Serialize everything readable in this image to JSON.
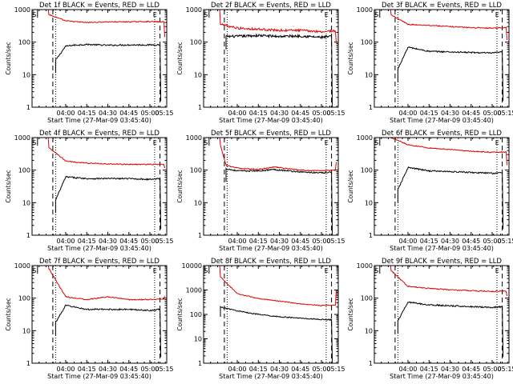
{
  "window": {
    "width": 640,
    "height": 480
  },
  "colors": {
    "events": "#000000",
    "lld": "#dd0000",
    "axes": "#000000",
    "background": "#ffffff"
  },
  "chart_data": [
    {
      "type": "line",
      "title": "Det 1f BLACK = Events, RED = LLD",
      "xlabel": "Start Time (27-Mar-09 03:45:40)",
      "ylabel": "Counts/sec",
      "ylog": true,
      "ylim": [
        1,
        1000
      ],
      "xlim_minutes": [
        -12,
        36
      ],
      "yticks": [
        1,
        10,
        100,
        1000
      ],
      "ytick_labels": [
        "1",
        "10",
        "100",
        "1000"
      ],
      "xticks": [
        0,
        7.5,
        15,
        22.5,
        30,
        37.5
      ],
      "xtick_labels": [
        "04:00",
        "04:15",
        "04:30",
        "04:45",
        "05:00",
        "05:15"
      ],
      "markers": {
        "S": -11.2,
        "E": 31.8
      },
      "dashed_lines": [
        -4.6,
        33.6
      ],
      "dotted_lines": [
        -3.6,
        31.7
      ],
      "series": [
        {
          "style": "events",
          "start": -3.6,
          "end": 33.6,
          "tail": -0.8,
          "x": [
            -3.6,
            0,
            2.5,
            7.5,
            15,
            22.5,
            30,
            33.6
          ],
          "y": [
            28,
            75,
            80,
            85,
            80,
            82,
            82,
            83
          ]
        },
        {
          "style": "lld",
          "start": -6,
          "end": 35,
          "tail": 1.3,
          "x": [
            -6,
            0,
            7.5,
            15,
            22.5,
            30,
            33.6
          ],
          "y": [
            700,
            450,
            400,
            420,
            420,
            430,
            420
          ]
        }
      ]
    },
    {
      "type": "line",
      "title": "Det 2f BLACK = Events, RED = LLD",
      "xlabel": "Start Time (27-Mar-09 03:45:40)",
      "ylabel": "Counts/sec",
      "ylog": true,
      "ylim": [
        1,
        1000
      ],
      "xlim_minutes": [
        -12,
        36
      ],
      "yticks": [
        1,
        10,
        100,
        1000
      ],
      "ytick_labels": [
        "1",
        "10",
        "100",
        "1000"
      ],
      "xticks": [
        0,
        7.5,
        15,
        22.5,
        30,
        37.5
      ],
      "xtick_labels": [
        "04:00",
        "04:15",
        "04:30",
        "04:45",
        "05:00",
        "05:15"
      ],
      "markers": {
        "S": -11.2,
        "E": 31.8
      },
      "dashed_lines": [
        -4.6,
        33.6
      ],
      "dotted_lines": [
        -3.6,
        31.7
      ],
      "series": [
        {
          "style": "events",
          "start": -4.0,
          "end": 33.6,
          "tail": -1.0,
          "x": [
            -4,
            0,
            7.5,
            15,
            22.5,
            30,
            33.6
          ],
          "y": [
            150,
            150,
            160,
            150,
            155,
            140,
            150
          ]
        },
        {
          "style": "lld",
          "start": -6,
          "end": 35,
          "tail": 1.1,
          "x": [
            -6,
            0,
            7.5,
            15,
            22.5,
            30,
            33.6
          ],
          "y": [
            350,
            270,
            250,
            230,
            230,
            210,
            220
          ]
        }
      ]
    },
    {
      "type": "line",
      "title": "Det 3f BLACK = Events, RED = LLD",
      "xlabel": "Start Time (27-Mar-09 03:45:40)",
      "ylabel": "Counts/sec",
      "ylog": true,
      "ylim": [
        1,
        1000
      ],
      "xlim_minutes": [
        -12,
        36
      ],
      "yticks": [
        1,
        10,
        100,
        1000
      ],
      "ytick_labels": [
        "1",
        "10",
        "100",
        "1000"
      ],
      "xticks": [
        0,
        7.5,
        15,
        22.5,
        30,
        37.5
      ],
      "xtick_labels": [
        "04:00",
        "04:15",
        "04:30",
        "04:45",
        "05:00",
        "05:15"
      ],
      "markers": {
        "S": -11.2,
        "E": 31.8
      },
      "dashed_lines": [
        -4.6,
        33.6
      ],
      "dotted_lines": [
        -3.6,
        31.7
      ],
      "series": [
        {
          "style": "events",
          "start": -3.6,
          "end": 33.6,
          "tail": -0.8,
          "x": [
            -3.6,
            0,
            7.5,
            15,
            22.5,
            30,
            33.6
          ],
          "y": [
            15,
            70,
            52,
            50,
            48,
            46,
            50
          ]
        },
        {
          "style": "lld",
          "start": -6,
          "end": 35,
          "tail": 1.2,
          "x": [
            -6,
            0,
            7.5,
            15,
            22.5,
            30,
            33.6
          ],
          "y": [
            700,
            350,
            330,
            300,
            280,
            270,
            280
          ]
        }
      ]
    },
    {
      "type": "line",
      "title": "Det 4f BLACK = Events, RED = LLD",
      "xlabel": "Start Time (27-Mar-09 03:45:40)",
      "ylabel": "Counts/sec",
      "ylog": true,
      "ylim": [
        1,
        1000
      ],
      "xlim_minutes": [
        -12,
        36
      ],
      "yticks": [
        1,
        10,
        100,
        1000
      ],
      "ytick_labels": [
        "1",
        "10",
        "100",
        "1000"
      ],
      "xticks": [
        0,
        7.5,
        15,
        22.5,
        30,
        37.5
      ],
      "xtick_labels": [
        "04:00",
        "04:15",
        "04:30",
        "04:45",
        "05:00",
        "05:15"
      ],
      "markers": {
        "S": -11.2,
        "E": 31.8
      },
      "dashed_lines": [
        -4.6,
        33.6
      ],
      "dotted_lines": [
        -3.6,
        31.7
      ],
      "series": [
        {
          "style": "events",
          "start": -3.6,
          "end": 33.6,
          "tail": -0.8,
          "x": [
            -3.6,
            0,
            7.5,
            15,
            22.5,
            30,
            33.6
          ],
          "y": [
            12,
            62,
            55,
            55,
            55,
            52,
            55
          ]
        },
        {
          "style": "lld",
          "start": -6,
          "end": 35,
          "tail": 1.2,
          "x": [
            -6,
            0,
            7.5,
            15,
            22.5,
            30,
            33.6
          ],
          "y": [
            500,
            190,
            165,
            155,
            150,
            150,
            150
          ]
        }
      ]
    },
    {
      "type": "line",
      "title": "Det 5f BLACK = Events, RED = LLD",
      "xlabel": "Start Time (27-Mar-09 03:45:40)",
      "ylabel": "Counts/sec",
      "ylog": true,
      "ylim": [
        1,
        1000
      ],
      "xlim_minutes": [
        -12,
        36
      ],
      "yticks": [
        1,
        10,
        100,
        1000
      ],
      "ytick_labels": [
        "1",
        "10",
        "100",
        "1000"
      ],
      "xticks": [
        0,
        7.5,
        15,
        22.5,
        30,
        37.5
      ],
      "xtick_labels": [
        "04:00",
        "04:15",
        "04:30",
        "04:45",
        "05:00",
        "05:15"
      ],
      "markers": {
        "S": -11.2,
        "E": 31.8
      },
      "dashed_lines": [
        -4.6,
        33.6
      ],
      "dotted_lines": [
        -3.6,
        31.7
      ],
      "series": [
        {
          "style": "events",
          "start": -4.0,
          "end": 33.6,
          "tail": -1.0,
          "x": [
            -4,
            0,
            7.5,
            13,
            22.5,
            30,
            33.6
          ],
          "y": [
            110,
            95,
            95,
            105,
            88,
            82,
            85
          ]
        },
        {
          "style": "lld",
          "start": -6,
          "end": 35,
          "tail": 1.4,
          "x": [
            -6,
            -4,
            0,
            7.5,
            13,
            22.5,
            30,
            33.6
          ],
          "y": [
            600,
            140,
            115,
            105,
            125,
            100,
            95,
            100
          ]
        }
      ]
    },
    {
      "type": "line",
      "title": "Det 6f BLACK = Events, RED = LLD",
      "xlabel": "Start Time (27-Mar-09 03:45:40)",
      "ylabel": "Counts/sec",
      "ylog": true,
      "ylim": [
        1,
        1000
      ],
      "xlim_minutes": [
        -12,
        36
      ],
      "yticks": [
        1,
        10,
        100,
        1000
      ],
      "ytick_labels": [
        "1",
        "10",
        "100",
        "1000"
      ],
      "xticks": [
        0,
        7.5,
        15,
        22.5,
        30,
        37.5
      ],
      "xtick_labels": [
        "04:00",
        "04:15",
        "04:30",
        "04:45",
        "05:00",
        "05:15"
      ],
      "markers": {
        "S": -11.2,
        "E": 31.8
      },
      "dashed_lines": [
        -4.6,
        33.6
      ],
      "dotted_lines": [
        -3.6,
        31.7
      ],
      "series": [
        {
          "style": "events",
          "start": -3.6,
          "end": 33.6,
          "tail": -0.8,
          "x": [
            -3.6,
            0,
            7.5,
            15,
            22.5,
            30,
            33.6
          ],
          "y": [
            25,
            120,
            95,
            90,
            85,
            80,
            82
          ]
        },
        {
          "style": "lld",
          "start": -6,
          "end": 35,
          "tail": 1.3,
          "x": [
            -6,
            0,
            7.5,
            15,
            22.5,
            30,
            33.6
          ],
          "y": [
            1000,
            600,
            480,
            430,
            380,
            350,
            360
          ]
        }
      ]
    },
    {
      "type": "line",
      "title": "Det 7f BLACK = Events, RED = LLD",
      "xlabel": "Start Time (27-Mar-09 03:45:40)",
      "ylabel": "Counts/sec",
      "ylog": true,
      "ylim": [
        1,
        1000
      ],
      "xlim_minutes": [
        -12,
        36
      ],
      "yticks": [
        1,
        10,
        100,
        1000
      ],
      "ytick_labels": [
        "1",
        "10",
        "100",
        "1000"
      ],
      "xticks": [
        0,
        7.5,
        15,
        22.5,
        30,
        37.5
      ],
      "xtick_labels": [
        "04:00",
        "04:15",
        "04:30",
        "04:45",
        "05:00",
        "05:15"
      ],
      "markers": {
        "S": -11.2,
        "E": 31.8
      },
      "dashed_lines": [
        -4.6,
        33.6
      ],
      "dotted_lines": [
        -3.6,
        31.7
      ],
      "series": [
        {
          "style": "events",
          "start": -3.6,
          "end": 33.6,
          "tail": -0.8,
          "x": [
            -3.6,
            0,
            7.5,
            15,
            22.5,
            30,
            33.6
          ],
          "y": [
            18,
            60,
            45,
            45,
            45,
            42,
            45
          ]
        },
        {
          "style": "lld",
          "start": -6,
          "end": 35,
          "tail": 1.2,
          "x": [
            -6,
            0,
            7.5,
            15,
            22.5,
            30,
            33.6
          ],
          "y": [
            800,
            110,
            90,
            110,
            90,
            90,
            95
          ]
        }
      ]
    },
    {
      "type": "line",
      "title": "Det 8f BLACK = Events, RED = LLD",
      "xlabel": "Start Time (27-Mar-09 03:45:40)",
      "ylabel": "Counts/sec",
      "ylog": true,
      "ylim": [
        1,
        10000
      ],
      "xlim_minutes": [
        -12,
        36
      ],
      "yticks": [
        1,
        10,
        100,
        1000,
        10000
      ],
      "ytick_labels": [
        "1",
        "10",
        "100",
        "1000",
        "10000"
      ],
      "xticks": [
        0,
        7.5,
        15,
        22.5,
        30,
        37.5
      ],
      "xtick_labels": [
        "04:00",
        "04:15",
        "04:30",
        "04:45",
        "05:00",
        "05:15"
      ],
      "markers": {
        "S": -11.2,
        "E": 31.8
      },
      "dashed_lines": [
        -4.6,
        33.6
      ],
      "dotted_lines": [
        -3.6,
        31.7
      ],
      "series": [
        {
          "style": "events",
          "start": -6,
          "end": 33.6,
          "tail": -1.0,
          "x": [
            -6,
            0,
            7.5,
            15,
            22.5,
            30,
            33.6
          ],
          "y": [
            200,
            140,
            100,
            80,
            70,
            62,
            60
          ]
        },
        {
          "style": "lld",
          "start": -6,
          "end": 35,
          "tail": 1.4,
          "x": [
            -6,
            0,
            7.5,
            15,
            22.5,
            30,
            33.6
          ],
          "y": [
            3500,
            700,
            450,
            350,
            270,
            230,
            240
          ]
        }
      ]
    },
    {
      "type": "line",
      "title": "Det 9f BLACK = Events, RED = LLD",
      "xlabel": "Start Time (27-Mar-09 03:45:40)",
      "ylabel": "Counts/sec",
      "ylog": true,
      "ylim": [
        1,
        1000
      ],
      "xlim_minutes": [
        -12,
        36
      ],
      "yticks": [
        1,
        10,
        100,
        1000
      ],
      "ytick_labels": [
        "1",
        "10",
        "100",
        "1000"
      ],
      "xticks": [
        0,
        7.5,
        15,
        22.5,
        30,
        37.5
      ],
      "xtick_labels": [
        "04:00",
        "04:15",
        "04:30",
        "04:45",
        "05:00",
        "05:15"
      ],
      "markers": {
        "S": -11.2,
        "E": 31.8
      },
      "dashed_lines": [
        -4.6,
        33.6
      ],
      "dotted_lines": [
        -3.6,
        31.7
      ],
      "series": [
        {
          "style": "events",
          "start": -3.6,
          "end": 33.6,
          "tail": -0.8,
          "x": [
            -3.6,
            0,
            7.5,
            15,
            22.5,
            30,
            33.6
          ],
          "y": [
            20,
            75,
            62,
            58,
            55,
            52,
            55
          ]
        },
        {
          "style": "lld",
          "start": -6,
          "end": 35,
          "tail": 1.2,
          "x": [
            -6,
            0,
            7.5,
            15,
            22.5,
            30,
            33.6
          ],
          "y": [
            700,
            230,
            200,
            180,
            170,
            160,
            165
          ]
        }
      ]
    }
  ]
}
